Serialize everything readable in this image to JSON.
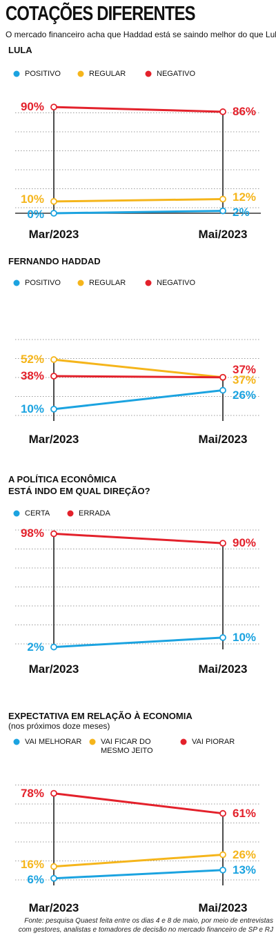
{
  "title": "COTAÇÕES DIFERENTES",
  "subtitle": "O mercado financeiro acha que Haddad está se saindo melhor do que Lula",
  "source": "Fonte: pesquisa Quaest feita entre os dias 4 e 8 de maio, por meio de entrevistas com gestores, analistas e tomadores de decisão no mercado financeiro de SP e RJ",
  "chart_data": [
    {
      "type": "line",
      "title": "LULA",
      "categories": [
        "Mar/2023",
        "Mai/2023"
      ],
      "ylim": [
        0,
        100
      ],
      "series": [
        {
          "name": "POSITIVO",
          "color": "#1ba3e0",
          "values": [
            0,
            2
          ],
          "value_labels": [
            "0%",
            "2%"
          ]
        },
        {
          "name": "REGULAR",
          "color": "#f5b51b",
          "values": [
            10,
            12
          ],
          "value_labels": [
            "10%",
            "12%"
          ]
        },
        {
          "name": "NEGATIVO",
          "color": "#e3212b",
          "values": [
            90,
            86
          ],
          "value_labels": [
            "90%",
            "86%"
          ]
        }
      ]
    },
    {
      "type": "line",
      "title": "FERNANDO HADDAD",
      "categories": [
        "Mar/2023",
        "Mai/2023"
      ],
      "ylim": [
        0,
        100
      ],
      "series": [
        {
          "name": "POSITIVO",
          "color": "#1ba3e0",
          "values": [
            10,
            26
          ],
          "value_labels": [
            "10%",
            "26%"
          ]
        },
        {
          "name": "REGULAR",
          "color": "#f5b51b",
          "values": [
            52,
            37
          ],
          "value_labels": [
            "52%",
            "37%"
          ]
        },
        {
          "name": "NEGATIVO",
          "color": "#e3212b",
          "values": [
            38,
            37
          ],
          "value_labels": [
            "38%",
            "37%"
          ]
        }
      ]
    },
    {
      "type": "line",
      "title": "A POLÍTICA ECONÔMICA\nESTÁ INDO EM QUAL DIREÇÃO?",
      "categories": [
        "Mar/2023",
        "Mai/2023"
      ],
      "ylim": [
        0,
        100
      ],
      "series": [
        {
          "name": "CERTA",
          "color": "#1ba3e0",
          "values": [
            2,
            10
          ],
          "value_labels": [
            "2%",
            "10%"
          ]
        },
        {
          "name": "ERRADA",
          "color": "#e3212b",
          "values": [
            98,
            90
          ],
          "value_labels": [
            "98%",
            "90%"
          ]
        }
      ]
    },
    {
      "type": "line",
      "title": "EXPECTATIVA EM RELAÇÃO À ECONOMIA",
      "subtitle": "(nos próximos doze meses)",
      "categories": [
        "Mar/2023",
        "Mai/2023"
      ],
      "ylim": [
        0,
        100
      ],
      "series": [
        {
          "name": "VAI MELHORAR",
          "color": "#1ba3e0",
          "values": [
            6,
            13
          ],
          "value_labels": [
            "6%",
            "13%"
          ]
        },
        {
          "name": "VAI FICAR DO MESMO JEITO",
          "color": "#f5b51b",
          "values": [
            16,
            26
          ],
          "value_labels": [
            "16%",
            "26%"
          ]
        },
        {
          "name": "VAI PIORAR",
          "color": "#e3212b",
          "values": [
            78,
            61
          ],
          "value_labels": [
            "78%",
            "61%"
          ]
        }
      ]
    }
  ]
}
